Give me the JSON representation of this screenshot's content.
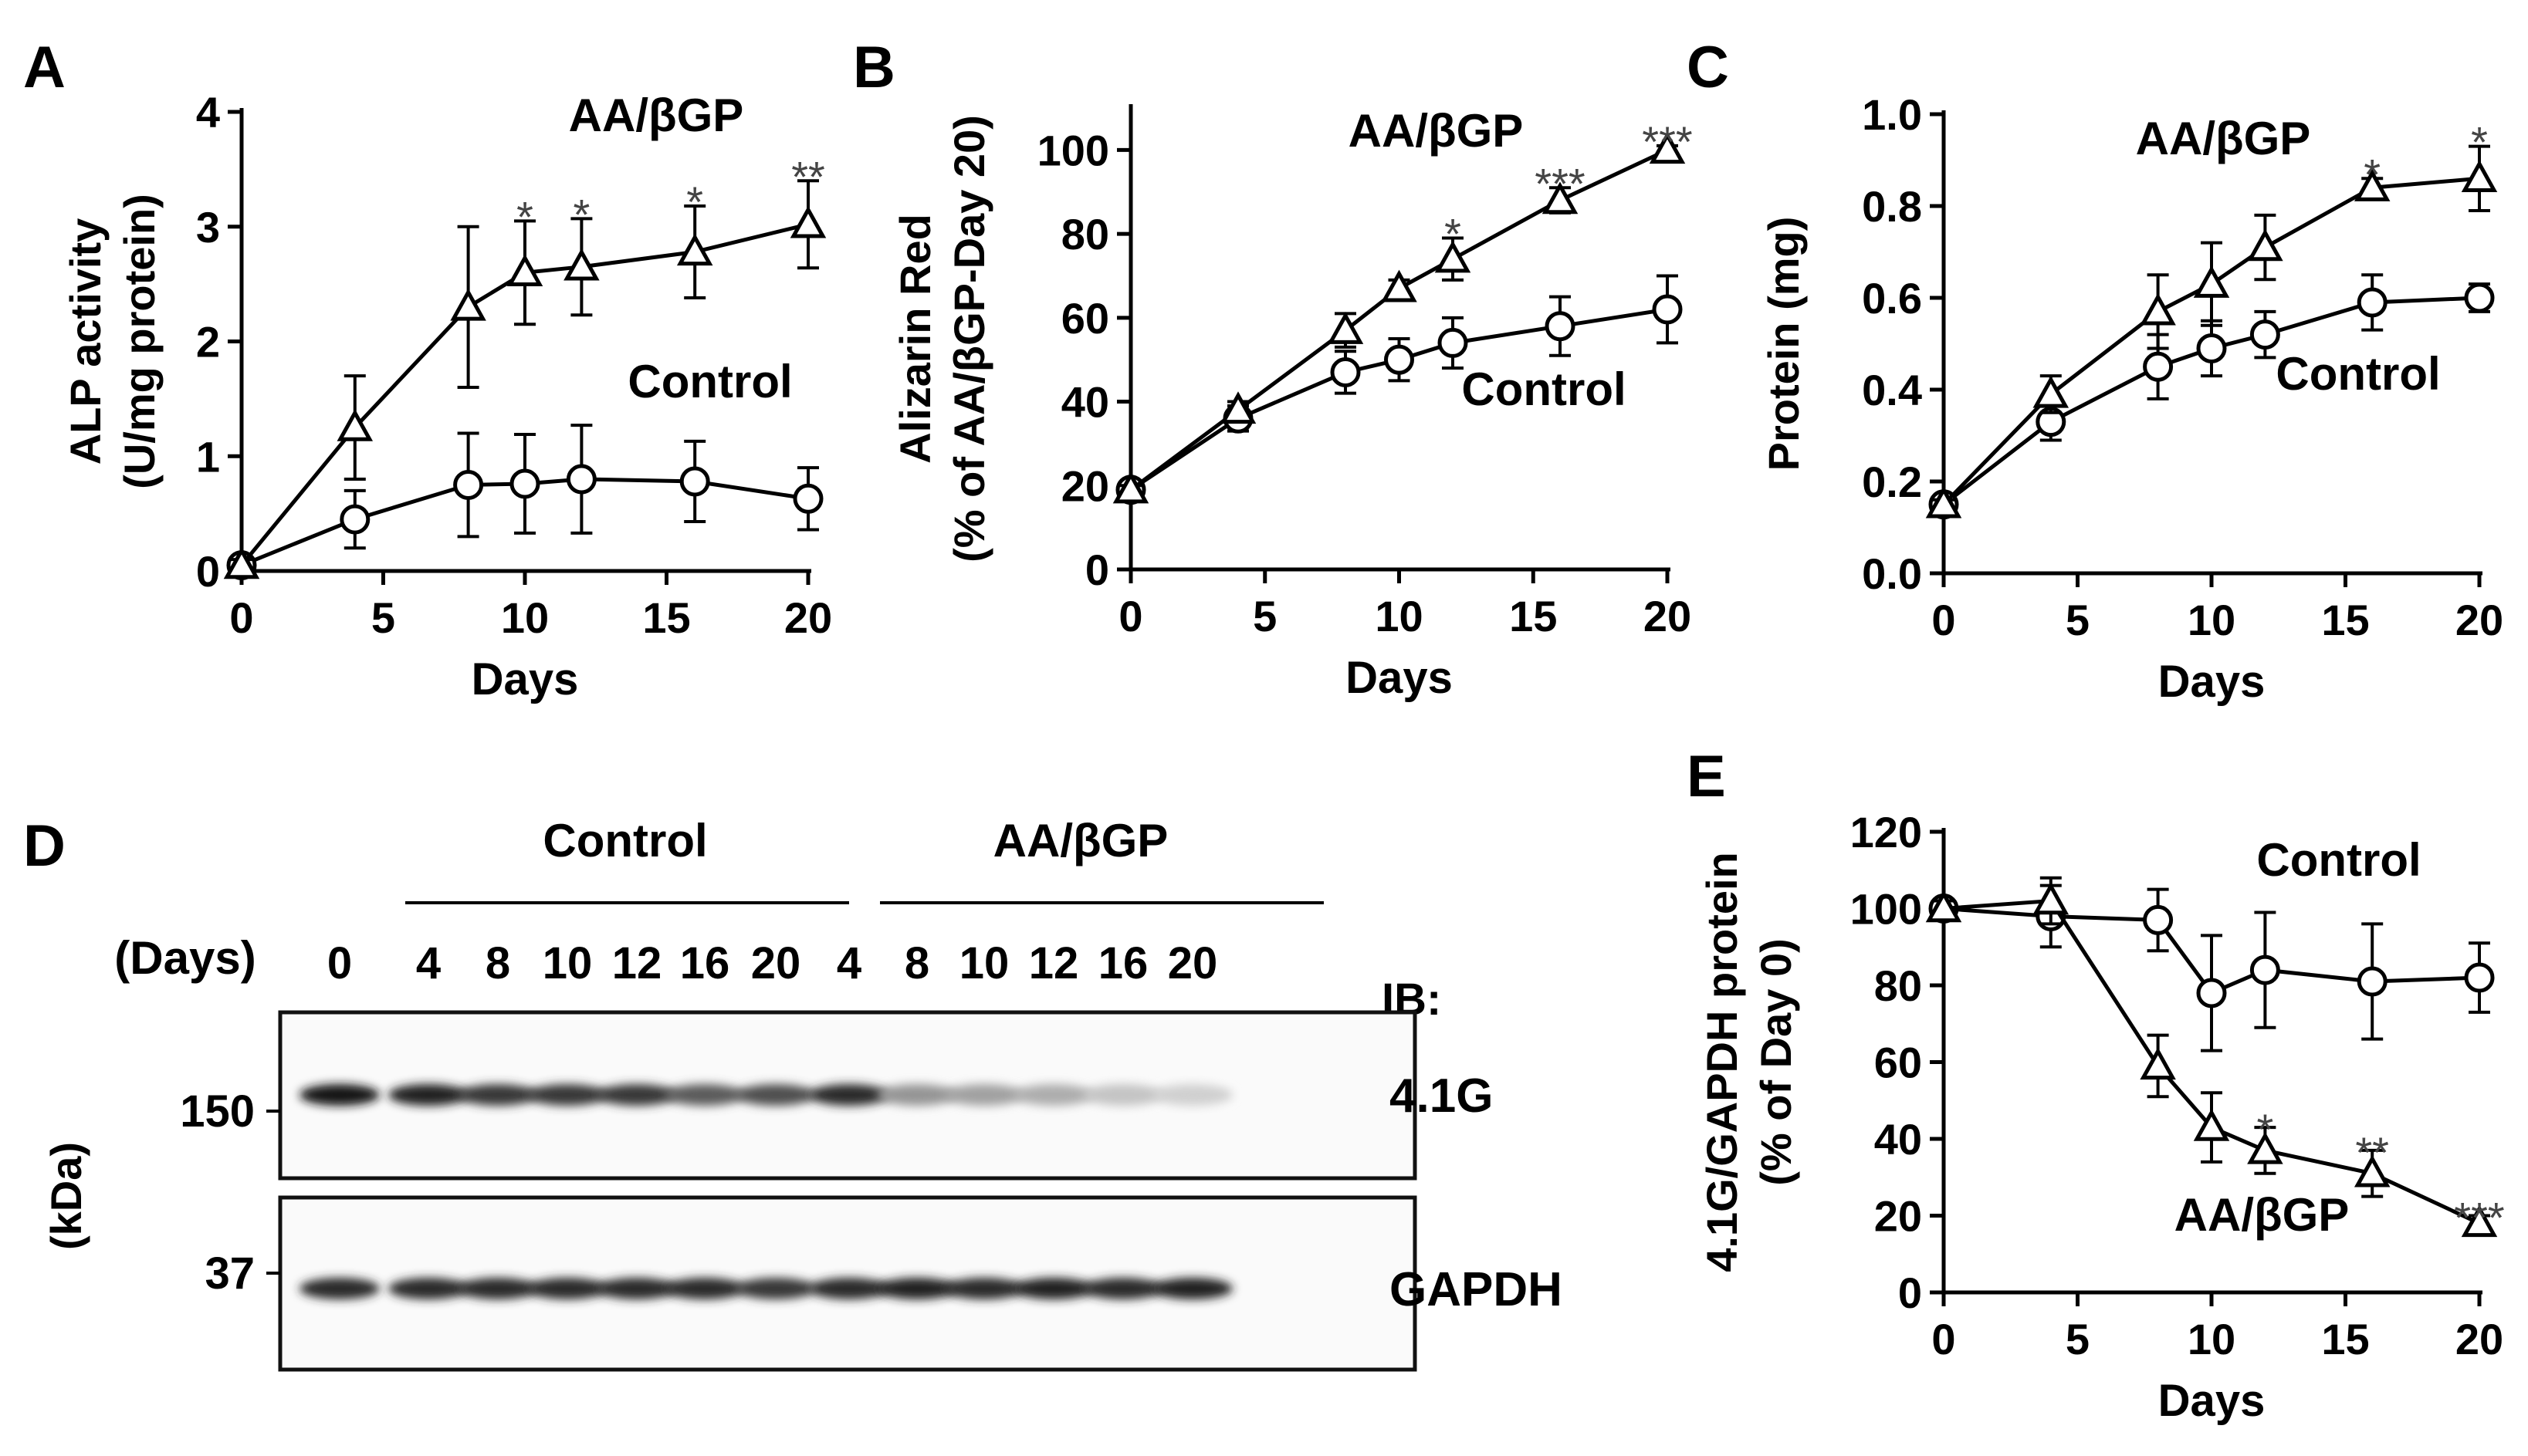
{
  "chart_data": [
    {
      "panel": "A",
      "type": "line",
      "xlabel": "Days",
      "ylabel": [
        "ALP activity",
        "(U/mg protein)"
      ],
      "xlim": [
        0,
        20
      ],
      "ylim": [
        0,
        4
      ],
      "xticks": [
        0,
        5,
        10,
        15,
        20
      ],
      "yticks": [
        0,
        1,
        2,
        3,
        4
      ],
      "x": [
        0,
        4,
        8,
        10,
        12,
        16,
        20
      ],
      "series": [
        {
          "name": "AA/βGP",
          "marker": "triangle",
          "values": [
            0.05,
            1.25,
            2.3,
            2.6,
            2.65,
            2.78,
            3.02
          ],
          "errors": [
            0.05,
            0.45,
            0.7,
            0.45,
            0.42,
            0.4,
            0.38
          ]
        },
        {
          "name": "Control",
          "marker": "circle",
          "values": [
            0.05,
            0.45,
            0.75,
            0.76,
            0.8,
            0.78,
            0.63
          ],
          "errors": [
            0.05,
            0.25,
            0.45,
            0.43,
            0.47,
            0.35,
            0.27
          ]
        }
      ],
      "annotations": [
        {
          "x": 10,
          "text": "*"
        },
        {
          "x": 12,
          "text": "*"
        },
        {
          "x": 16,
          "text": "*"
        },
        {
          "x": 20,
          "text": "**"
        }
      ]
    },
    {
      "panel": "B",
      "type": "line",
      "xlabel": "Days",
      "ylabel": [
        "Alizarin Red",
        "(% of AA/βGP-Day 20)"
      ],
      "xlim": [
        0,
        20
      ],
      "ylim": [
        0,
        110
      ],
      "xticks": [
        0,
        5,
        10,
        15,
        20
      ],
      "yticks": [
        0,
        20,
        40,
        60,
        80,
        100
      ],
      "x": [
        0,
        4,
        8,
        10,
        12,
        16,
        20
      ],
      "series": [
        {
          "name": "AA/βGP",
          "marker": "triangle",
          "values": [
            19,
            38,
            57,
            67,
            74,
            88,
            100
          ],
          "errors": [
            1,
            2,
            4,
            2,
            5,
            3,
            1
          ]
        },
        {
          "name": "Control",
          "marker": "circle",
          "values": [
            19,
            36,
            47,
            50,
            54,
            58,
            62
          ],
          "errors": [
            1,
            3,
            5,
            5,
            6,
            7,
            8
          ]
        }
      ],
      "annotations": [
        {
          "x": 12,
          "text": "*"
        },
        {
          "x": 16,
          "text": "***"
        },
        {
          "x": 20,
          "text": "***"
        }
      ]
    },
    {
      "panel": "C",
      "type": "line",
      "xlabel": "Days",
      "ylabel": [
        "Protein (mg)"
      ],
      "xlim": [
        0,
        20
      ],
      "ylim": [
        0,
        1.0
      ],
      "xticks": [
        0,
        5,
        10,
        15,
        20
      ],
      "yticks": [
        "0.0",
        "0.2",
        "0.4",
        "0.6",
        "0.8",
        "1.0"
      ],
      "x": [
        0,
        4,
        8,
        10,
        12,
        16,
        20
      ],
      "series": [
        {
          "name": "AA/βGP",
          "marker": "triangle",
          "values": [
            0.15,
            0.39,
            0.57,
            0.63,
            0.71,
            0.84,
            0.86
          ],
          "errors": [
            0.01,
            0.04,
            0.08,
            0.09,
            0.07,
            0.02,
            0.07
          ]
        },
        {
          "name": "Control",
          "marker": "circle",
          "values": [
            0.15,
            0.33,
            0.45,
            0.49,
            0.52,
            0.59,
            0.6
          ],
          "errors": [
            0.01,
            0.04,
            0.07,
            0.06,
            0.05,
            0.06,
            0.03
          ]
        }
      ],
      "annotations": [
        {
          "x": 16,
          "text": "*"
        },
        {
          "x": 20,
          "text": "*"
        }
      ]
    },
    {
      "panel": "E",
      "type": "line",
      "xlabel": "Days",
      "ylabel": [
        "4.1G/GAPDH protein",
        "(% of Day 0)"
      ],
      "xlim": [
        0,
        20
      ],
      "ylim": [
        0,
        120
      ],
      "xticks": [
        0,
        5,
        10,
        15,
        20
      ],
      "yticks": [
        0,
        20,
        40,
        60,
        80,
        100,
        120
      ],
      "x": [
        0,
        4,
        8,
        10,
        12,
        16,
        20
      ],
      "series": [
        {
          "name": "AA/βGP",
          "marker": "triangle",
          "values": [
            100,
            102,
            59,
            43,
            37,
            31,
            18
          ],
          "errors": [
            2,
            6,
            8,
            9,
            6,
            6,
            2
          ]
        },
        {
          "name": "Control",
          "marker": "circle",
          "values": [
            100,
            98,
            97,
            78,
            84,
            81,
            82
          ],
          "errors": [
            2,
            8,
            8,
            15,
            15,
            15,
            9
          ]
        }
      ],
      "annotations": [
        {
          "x": 12,
          "text": "*"
        },
        {
          "x": 16,
          "text": "**"
        },
        {
          "x": 20,
          "text": "***"
        }
      ]
    }
  ],
  "blot": {
    "panel": "D",
    "groups": [
      "Control",
      "AA/βGP"
    ],
    "days_label": "(Days)",
    "lanes": [
      "0",
      "4",
      "8",
      "10",
      "12",
      "16",
      "20",
      "4",
      "8",
      "10",
      "12",
      "16",
      "20"
    ],
    "ib_label": "IB:",
    "kda_label": "(kDa)",
    "rows": [
      {
        "protein": "4.1G",
        "marker": "150",
        "intensities": [
          1.0,
          0.95,
          0.85,
          0.85,
          0.85,
          0.7,
          0.75,
          0.9,
          0.45,
          0.4,
          0.35,
          0.25,
          0.2
        ]
      },
      {
        "protein": "GAPDH",
        "marker": "37",
        "intensities": [
          0.9,
          0.9,
          0.9,
          0.9,
          0.9,
          0.9,
          0.85,
          0.9,
          0.95,
          0.9,
          0.95,
          0.9,
          0.95
        ]
      }
    ]
  }
}
